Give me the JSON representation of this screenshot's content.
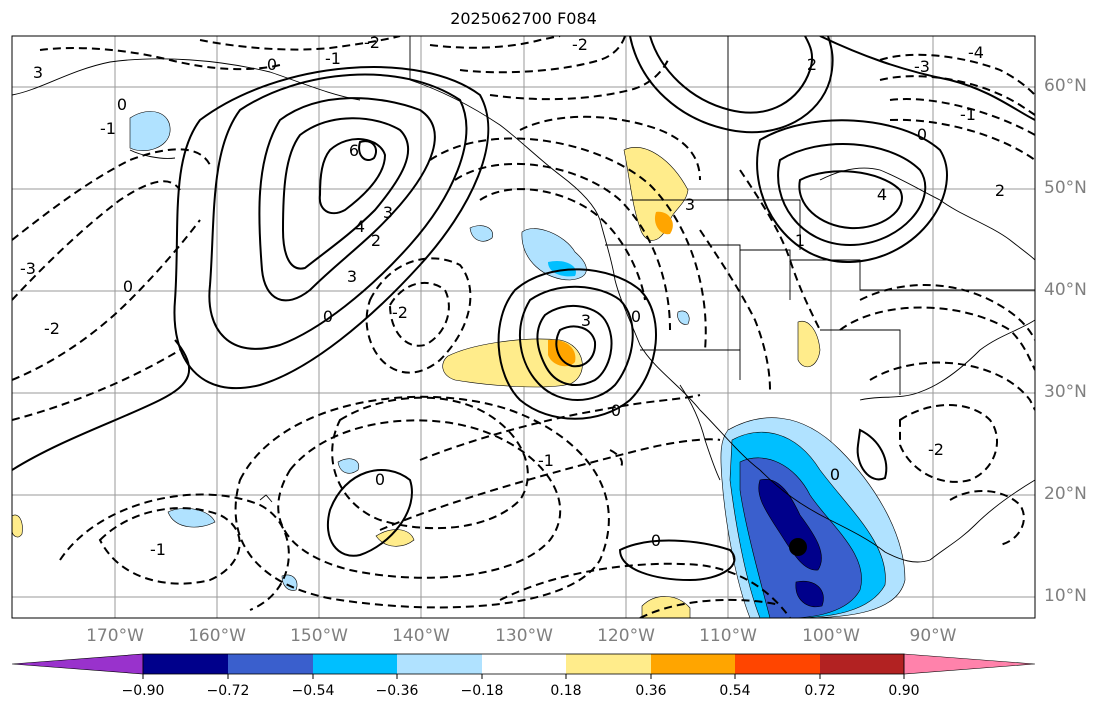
{
  "title": "2025062700 F084",
  "lat_labels": [
    "60°N",
    "50°N",
    "40°N",
    "30°N",
    "20°N",
    "10°N"
  ],
  "lon_labels": [
    "170°W",
    "160°W",
    "150°W",
    "140°W",
    "130°W",
    "120°W",
    "110°W",
    "100°W",
    "90°W"
  ],
  "colorbar": {
    "colors": [
      "#9932cc",
      "#00008b",
      "#3a5fcd",
      "#00bfff",
      "#b0e2ff",
      "#ffffff",
      "#ffec8b",
      "#ffa500",
      "#ff4500",
      "#b22222",
      "#ff82ab"
    ],
    "tick_labels": [
      "−0.90",
      "−0.72",
      "−0.54",
      "−0.36",
      "−0.18",
      "0.18",
      "0.36",
      "0.54",
      "0.72",
      "0.90"
    ]
  },
  "contour_labels": [
    "6",
    "4",
    "3",
    "2",
    "3",
    "0",
    "0",
    "-3",
    "-2",
    "-1",
    "0",
    "3",
    "0",
    "-2",
    "-1",
    "-1",
    "0",
    "-2",
    "2",
    "4",
    "1",
    "2",
    "-1",
    "0",
    "3",
    "-3",
    "-4",
    "3",
    "-2",
    "0",
    "0",
    "0",
    "-2",
    "-1",
    "0"
  ],
  "marker": {
    "label": "",
    "color": "#000000"
  }
}
